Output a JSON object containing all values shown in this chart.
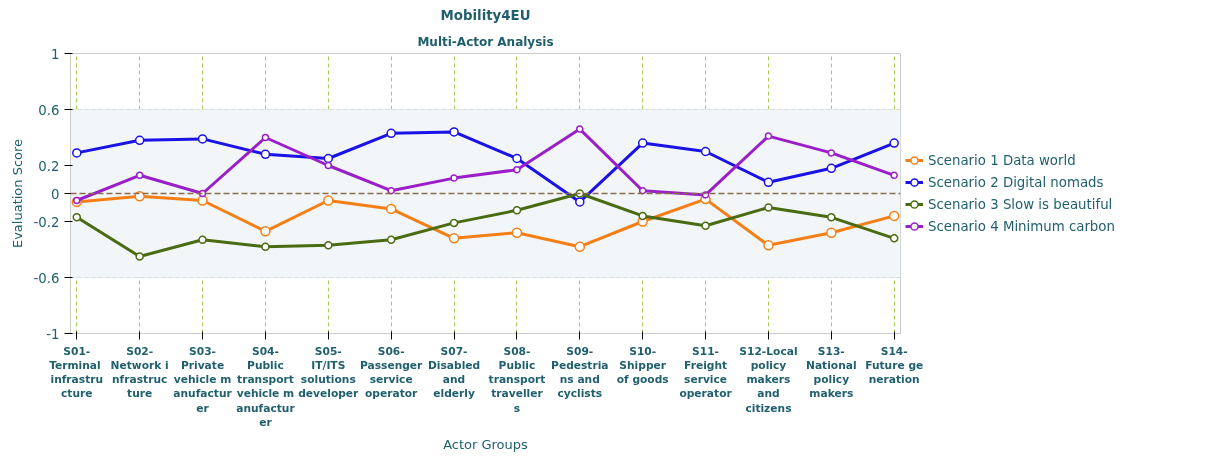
{
  "chart_data": {
    "type": "line",
    "title": "Mobility4EU",
    "subtitle": "Multi-Actor Analysis",
    "xlabel": "Actor Groups",
    "ylabel": "Evaluation Score",
    "categories": [
      "S01-Terminal infrastructure",
      "S02-Network infrastructure",
      "S03-Private vehicle manufacturer",
      "S04-Public transport vehicle manufacturer",
      "S05-IT/ITS solutions developer",
      "S06-Passenger service operator",
      "S07-Disabled and elderly",
      "S08-Public transport travellers",
      "S09-Pedestrians and cyclists",
      "S10-Shipper of goods",
      "S11-Freight service operator",
      "S12-Local policy makers and citizens",
      "S13-National policy makers",
      "S14-Future generation"
    ],
    "series": [
      {
        "name": "Scenario 1 Data world",
        "color": "#f57f17",
        "values": [
          -0.06,
          -0.02,
          -0.05,
          -0.27,
          -0.05,
          -0.11,
          -0.32,
          -0.28,
          -0.38,
          -0.2,
          -0.04,
          -0.37,
          -0.28,
          -0.16
        ]
      },
      {
        "name": "Scenario 2 Digital nomads",
        "color": "#1a12e6",
        "values": [
          0.29,
          0.38,
          0.39,
          0.28,
          0.25,
          0.43,
          0.44,
          0.25,
          -0.06,
          0.36,
          0.3,
          0.08,
          0.18,
          0.36
        ]
      },
      {
        "name": "Scenario 3 Slow is beautiful",
        "color": "#4a6b12",
        "values": [
          -0.17,
          -0.45,
          -0.33,
          -0.38,
          -0.37,
          -0.33,
          -0.21,
          -0.12,
          0.0,
          -0.16,
          -0.23,
          -0.1,
          -0.17,
          -0.32
        ]
      },
      {
        "name": "Scenario 4 Minimum carbon",
        "color": "#9b1fc9",
        "values": [
          -0.05,
          0.13,
          0.0,
          0.4,
          0.2,
          0.02,
          0.11,
          0.17,
          0.46,
          0.02,
          -0.01,
          0.41,
          0.29,
          0.13
        ]
      }
    ],
    "ylim": [
      -1,
      1
    ],
    "yticks": [
      -1,
      -0.6,
      -0.2,
      0,
      0.2,
      0.6,
      1
    ],
    "ref_lines": [
      {
        "axis": "y",
        "value": 0,
        "color": "#8b6b4a",
        "line_style": "dashed"
      }
    ],
    "bands": [
      {
        "axis": "y",
        "from": -0.6,
        "to": 0.6,
        "color": "#f2f6f8"
      }
    ],
    "grid": true,
    "legend": "right",
    "marker": "circle",
    "line_style": "solid"
  }
}
